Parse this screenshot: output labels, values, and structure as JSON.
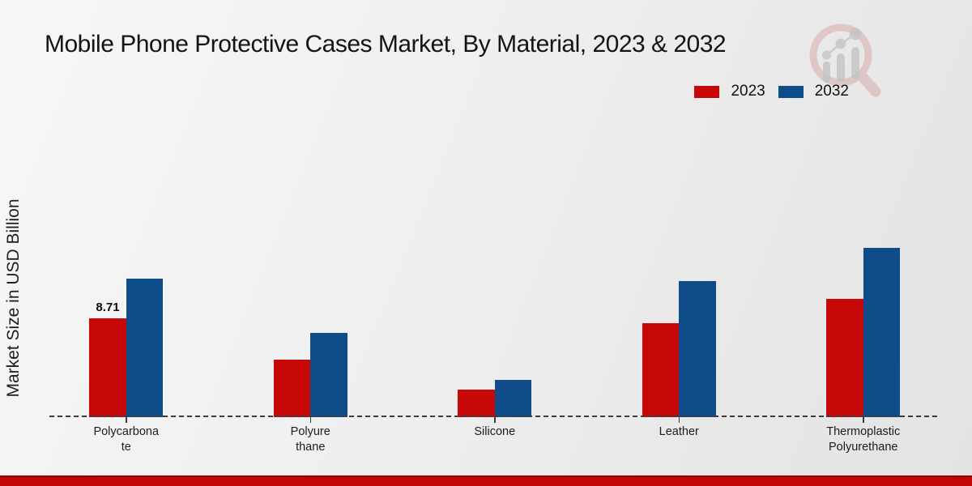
{
  "page": {
    "title": "Mobile Phone Protective Cases Market, By Material, 2023 & 2032"
  },
  "legend": {
    "items": [
      {
        "label": "2023",
        "color": "#c60808"
      },
      {
        "label": "2032",
        "color": "#0e4d8a"
      }
    ]
  },
  "watermark": {
    "icon": "magnifier-growth-chart-logo"
  },
  "chart_data": {
    "type": "bar",
    "title": "Mobile Phone Protective Cases Market, By Material, 2023 & 2032",
    "xlabel": "",
    "ylabel": "Market Size in USD Billion",
    "categories": [
      "Polycarbonate",
      "Polyurethane",
      "Silicone",
      "Leather",
      "Thermoplastic Polyurethane"
    ],
    "category_display_lines": [
      [
        "Polycarbona",
        "te"
      ],
      [
        "Polyure",
        "thane"
      ],
      [
        "Silicone"
      ],
      [
        "Leather"
      ],
      [
        "Thermoplastic",
        "Polyurethane"
      ]
    ],
    "series": [
      {
        "name": "2023",
        "color": "#c60808",
        "values": [
          8.71,
          5.1,
          2.4,
          8.3,
          10.4
        ]
      },
      {
        "name": "2032",
        "color": "#0e4d8a",
        "values": [
          12.2,
          7.4,
          3.3,
          12.0,
          14.9
        ]
      }
    ],
    "data_labels": [
      {
        "series_index": 0,
        "category_index": 0,
        "text": "8.71"
      }
    ],
    "ylim": [
      0,
      16
    ],
    "grid": false,
    "legend_position": "top-right",
    "baseline_style": "dashed-zero-line",
    "footer_band_color": "#c00707"
  }
}
